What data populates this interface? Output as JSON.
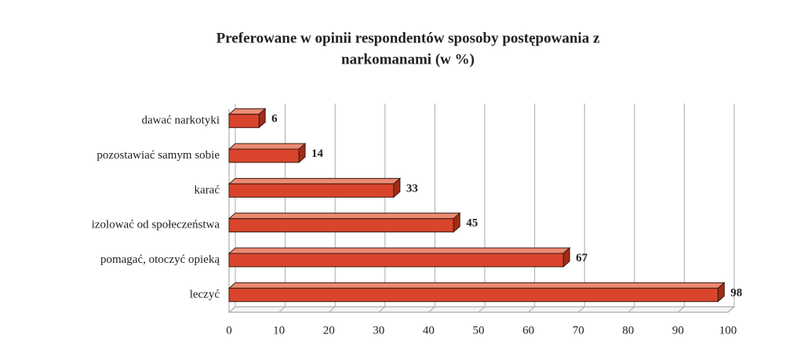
{
  "chart_data": {
    "type": "bar",
    "orientation": "horizontal",
    "title": [
      "Preferowane w opinii respondentów sposoby postępowania z",
      "narkomanami (w %)"
    ],
    "categories": [
      "dawać narkotyki",
      "pozostawiać samym sobie",
      "karać",
      "izolować od społeczeństwa",
      "pomagać, otoczyć opieką",
      "leczyć"
    ],
    "values": [
      6,
      14,
      33,
      45,
      67,
      98
    ],
    "color": "#d8452c",
    "xlim": [
      0,
      100
    ],
    "xticks": [
      0,
      10,
      20,
      30,
      40,
      50,
      60,
      70,
      80,
      90,
      100
    ],
    "grid": true
  }
}
